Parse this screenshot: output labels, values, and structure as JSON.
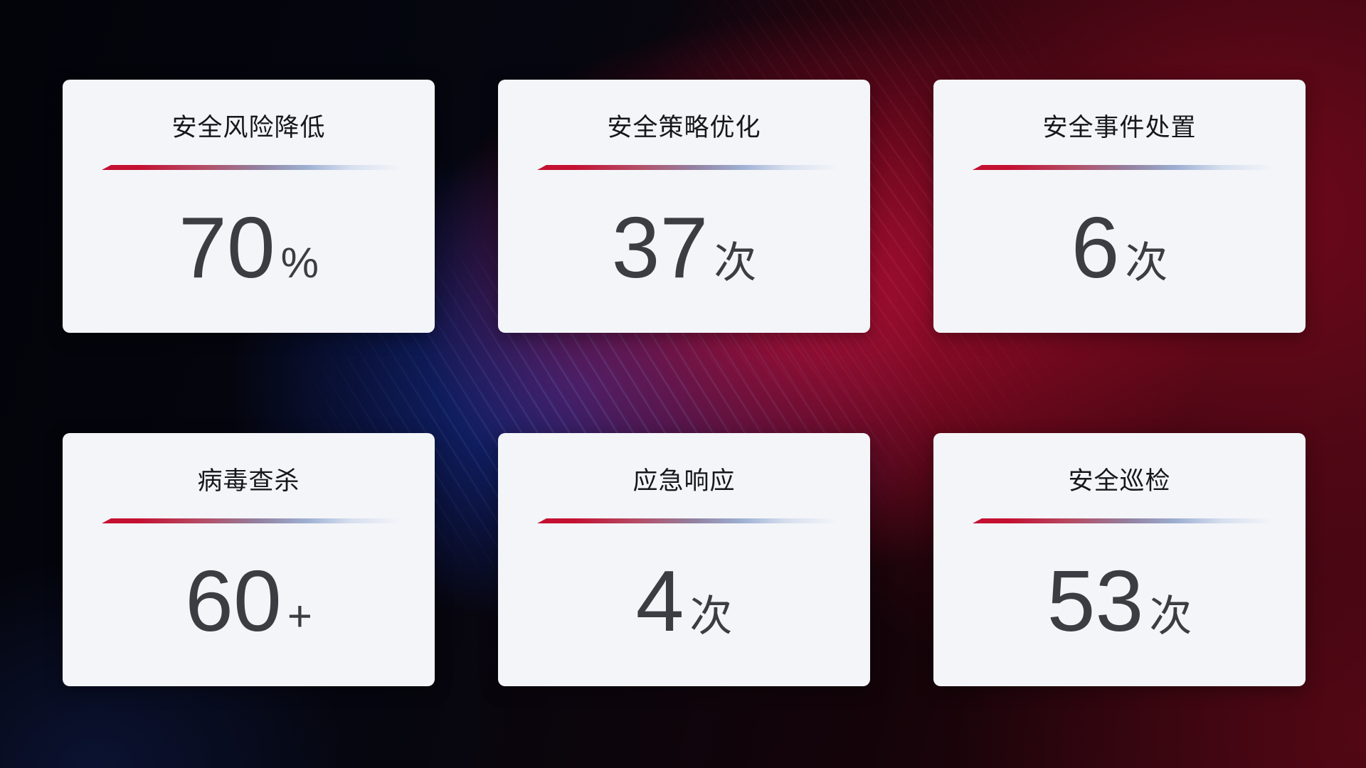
{
  "cards": [
    {
      "title": "安全风险降低",
      "value": "70",
      "unit": "%"
    },
    {
      "title": "安全策略优化",
      "value": "37",
      "unit": "次"
    },
    {
      "title": "安全事件处置",
      "value": "6",
      "unit": "次"
    },
    {
      "title": "病毒查杀",
      "value": "60",
      "unit": "+"
    },
    {
      "title": "应急响应",
      "value": "4",
      "unit": "次"
    },
    {
      "title": "安全巡检",
      "value": "53",
      "unit": "次"
    }
  ],
  "colors": {
    "card_bg": "#f4f5f9",
    "title_color": "#16171b",
    "value_color": "#3c3d42",
    "divider_red": "#c41031",
    "divider_blue": "#9dafd2",
    "background_red_glow": "#8c0f26",
    "background_blue_glow": "#13277d"
  }
}
